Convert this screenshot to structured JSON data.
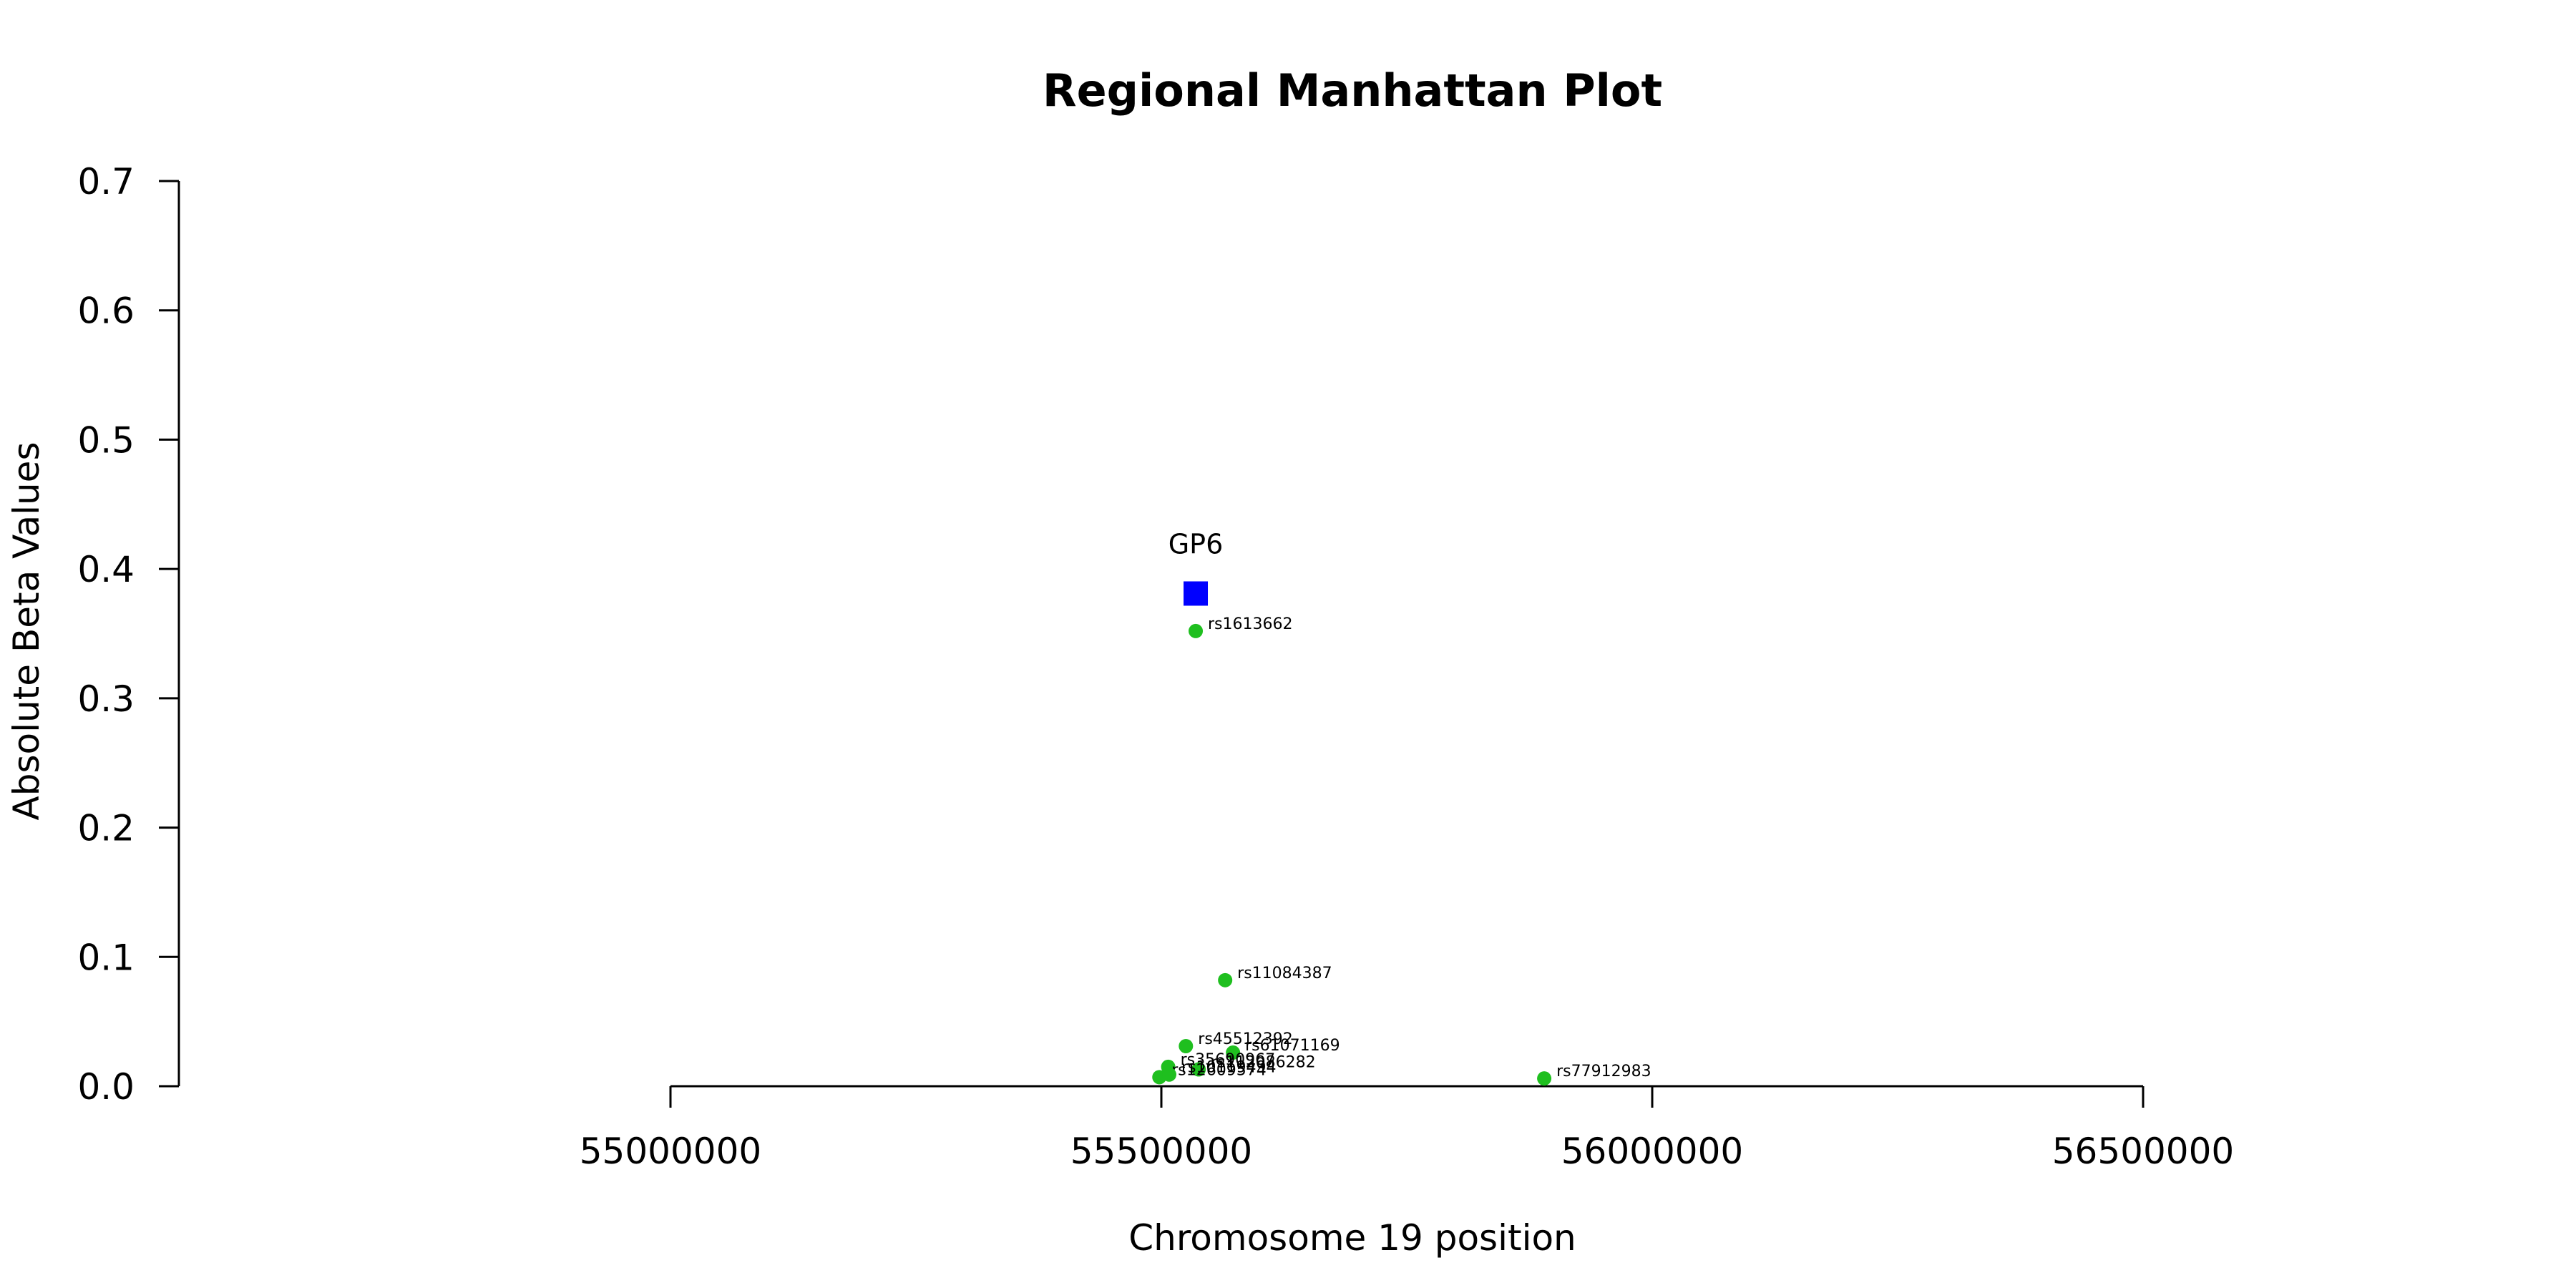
{
  "chart_data": {
    "type": "scatter",
    "title": "Regional Manhattan Plot",
    "xlabel": "Chromosome 19 position",
    "ylabel": "Absolute Beta Values",
    "xlim": [
      54500000,
      57000000
    ],
    "ylim": [
      0,
      0.7
    ],
    "x_ticks": [
      55000000,
      55500000,
      56000000,
      56500000
    ],
    "x_tick_labels": [
      "55000000",
      "55500000",
      "56000000",
      "56500000"
    ],
    "y_ticks": [
      0,
      0.1,
      0.2,
      0.3,
      0.4,
      0.5,
      0.6,
      0.7
    ],
    "y_tick_labels": [
      "0.0",
      "0.1",
      "0.2",
      "0.3",
      "0.4",
      "0.5",
      "0.6",
      "0.7"
    ],
    "grid": false,
    "colors": {
      "snp": "#1fbf1f",
      "gene": "#0000ff",
      "axis": "#000000"
    },
    "gene": {
      "name": "GP6",
      "x": 55535000,
      "y": 0.381
    },
    "series": [
      {
        "points": [
          {
            "x": 55535000,
            "y": 0.352,
            "label": "rs1613662"
          },
          {
            "x": 55565000,
            "y": 0.082,
            "label": "rs11084387"
          },
          {
            "x": 55525000,
            "y": 0.031,
            "label": "rs45512392"
          },
          {
            "x": 55573000,
            "y": 0.026,
            "label": "rs61071169"
          },
          {
            "x": 55507000,
            "y": 0.015,
            "label": "rs35690967"
          },
          {
            "x": 55538000,
            "y": 0.013,
            "label": "rs112086282"
          },
          {
            "x": 55498000,
            "y": 0.007,
            "label": "rs12609574"
          },
          {
            "x": 55508000,
            "y": 0.009,
            "label": "rs10119494"
          },
          {
            "x": 55890000,
            "y": 0.006,
            "label": "rs77912983"
          }
        ]
      }
    ]
  }
}
